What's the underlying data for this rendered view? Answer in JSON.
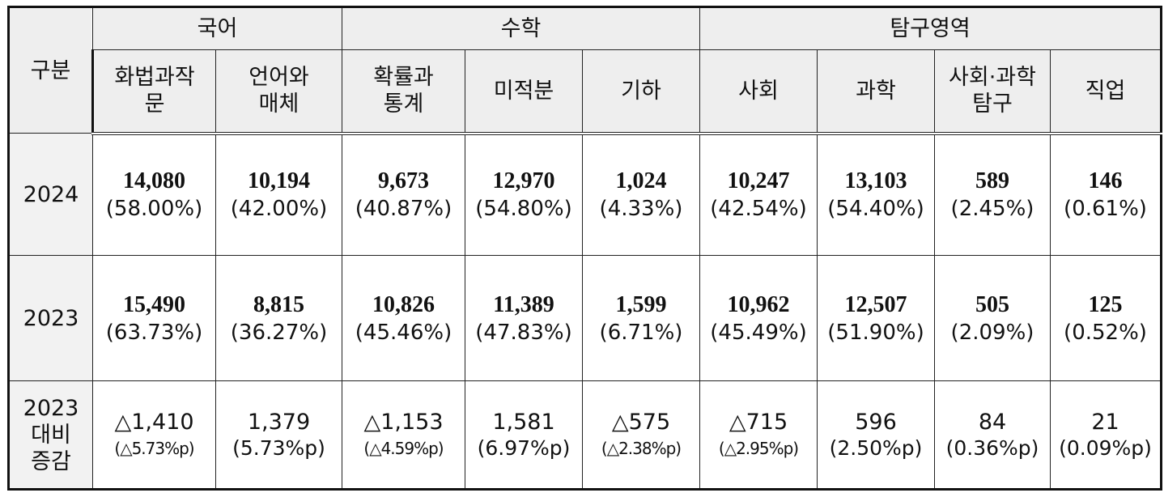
{
  "headers": {
    "row_label": "구분",
    "groups": [
      "국어",
      "수학",
      "탐구영역"
    ],
    "subjects": [
      [
        "화법과작",
        "문"
      ],
      [
        "언어와",
        "매체"
      ],
      [
        "확률과",
        "통계"
      ],
      [
        "미적분"
      ],
      [
        "기하"
      ],
      [
        "사회"
      ],
      [
        "과학"
      ],
      [
        "사회·과학",
        "탐구"
      ],
      [
        "직업"
      ]
    ]
  },
  "rows": [
    {
      "label": "2024",
      "cells": [
        {
          "value": "14,080",
          "pct": "(58.00%)"
        },
        {
          "value": "10,194",
          "pct": "(42.00%)"
        },
        {
          "value": "9,673",
          "pct": "(40.87%)"
        },
        {
          "value": "12,970",
          "pct": "(54.80%)"
        },
        {
          "value": "1,024",
          "pct": "(4.33%)"
        },
        {
          "value": "10,247",
          "pct": "(42.54%)"
        },
        {
          "value": "13,103",
          "pct": "(54.40%)"
        },
        {
          "value": "589",
          "pct": "(2.45%)"
        },
        {
          "value": "146",
          "pct": "(0.61%)"
        }
      ]
    },
    {
      "label": "2023",
      "cells": [
        {
          "value": "15,490",
          "pct": "(63.73%)"
        },
        {
          "value": "8,815",
          "pct": "(36.27%)"
        },
        {
          "value": "10,826",
          "pct": "(45.46%)"
        },
        {
          "value": "11,389",
          "pct": "(47.83%)"
        },
        {
          "value": "1,599",
          "pct": "(6.71%)"
        },
        {
          "value": "10,962",
          "pct": "(45.49%)"
        },
        {
          "value": "12,507",
          "pct": "(51.90%)"
        },
        {
          "value": "505",
          "pct": "(2.09%)"
        },
        {
          "value": "125",
          "pct": "(0.52%)"
        }
      ]
    },
    {
      "label": [
        "2023",
        "대비",
        "증감"
      ],
      "cells": [
        {
          "value": "△1,410",
          "pct": "(△5.73%p)"
        },
        {
          "value": "1,379",
          "pct": "(5.73%p)"
        },
        {
          "value": "△1,153",
          "pct": "(△4.59%p)"
        },
        {
          "value": "1,581",
          "pct": "(6.97%p)"
        },
        {
          "value": "△575",
          "pct": "(△2.38%p)"
        },
        {
          "value": "△715",
          "pct": "(△2.95%p)"
        },
        {
          "value": "596",
          "pct": "(2.50%p)"
        },
        {
          "value": "84",
          "pct": "(0.36%p)"
        },
        {
          "value": "21",
          "pct": "(0.09%p)"
        }
      ]
    }
  ]
}
